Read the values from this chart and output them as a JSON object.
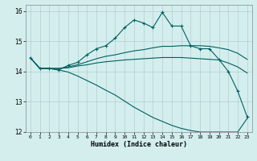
{
  "xlabel": "Humidex (Indice chaleur)",
  "ylabel": "",
  "bg_color": "#d4eeee",
  "line_color": "#006060",
  "xlim": [
    -0.5,
    23.5
  ],
  "ylim": [
    12,
    16.2
  ],
  "yticks": [
    12,
    13,
    14,
    15,
    16
  ],
  "xticks": [
    0,
    1,
    2,
    3,
    4,
    5,
    6,
    7,
    8,
    9,
    10,
    11,
    12,
    13,
    14,
    15,
    16,
    17,
    18,
    19,
    20,
    21,
    22,
    23
  ],
  "series": [
    {
      "x": [
        0,
        1,
        2,
        3,
        4,
        5,
        6,
        7,
        8,
        9,
        10,
        11,
        12,
        13,
        14,
        15,
        16,
        17,
        18,
        19,
        20,
        21,
        22,
        23
      ],
      "y": [
        14.45,
        14.1,
        14.1,
        14.05,
        14.2,
        14.3,
        14.55,
        14.75,
        14.85,
        15.1,
        15.45,
        15.7,
        15.6,
        15.45,
        15.95,
        15.5,
        15.5,
        14.85,
        14.75,
        14.75,
        14.4,
        14.0,
        13.35,
        12.5
      ],
      "marker": true
    },
    {
      "x": [
        0,
        1,
        2,
        3,
        4,
        5,
        6,
        7,
        8,
        9,
        10,
        11,
        12,
        13,
        14,
        15,
        16,
        17,
        18,
        19,
        20,
        21,
        22,
        23
      ],
      "y": [
        14.45,
        14.1,
        14.1,
        14.1,
        14.15,
        14.22,
        14.32,
        14.42,
        14.5,
        14.55,
        14.62,
        14.68,
        14.72,
        14.78,
        14.83,
        14.83,
        14.85,
        14.85,
        14.85,
        14.83,
        14.78,
        14.72,
        14.6,
        14.4
      ],
      "marker": false
    },
    {
      "x": [
        0,
        1,
        2,
        3,
        4,
        5,
        6,
        7,
        8,
        9,
        10,
        11,
        12,
        13,
        14,
        15,
        16,
        17,
        18,
        19,
        20,
        21,
        22,
        23
      ],
      "y": [
        14.45,
        14.1,
        14.1,
        14.1,
        14.12,
        14.18,
        14.22,
        14.28,
        14.32,
        14.35,
        14.38,
        14.4,
        14.42,
        14.44,
        14.46,
        14.46,
        14.46,
        14.44,
        14.42,
        14.4,
        14.38,
        14.28,
        14.15,
        13.95
      ],
      "marker": false
    },
    {
      "x": [
        0,
        1,
        2,
        3,
        4,
        5,
        6,
        7,
        8,
        9,
        10,
        11,
        12,
        13,
        14,
        15,
        16,
        17,
        18,
        19,
        20,
        21,
        22,
        23
      ],
      "y": [
        14.45,
        14.1,
        14.1,
        14.05,
        13.98,
        13.85,
        13.7,
        13.55,
        13.38,
        13.22,
        13.02,
        12.82,
        12.65,
        12.48,
        12.35,
        12.22,
        12.12,
        12.05,
        12.0,
        12.0,
        12.0,
        12.0,
        12.0,
        12.45
      ],
      "marker": false
    }
  ]
}
